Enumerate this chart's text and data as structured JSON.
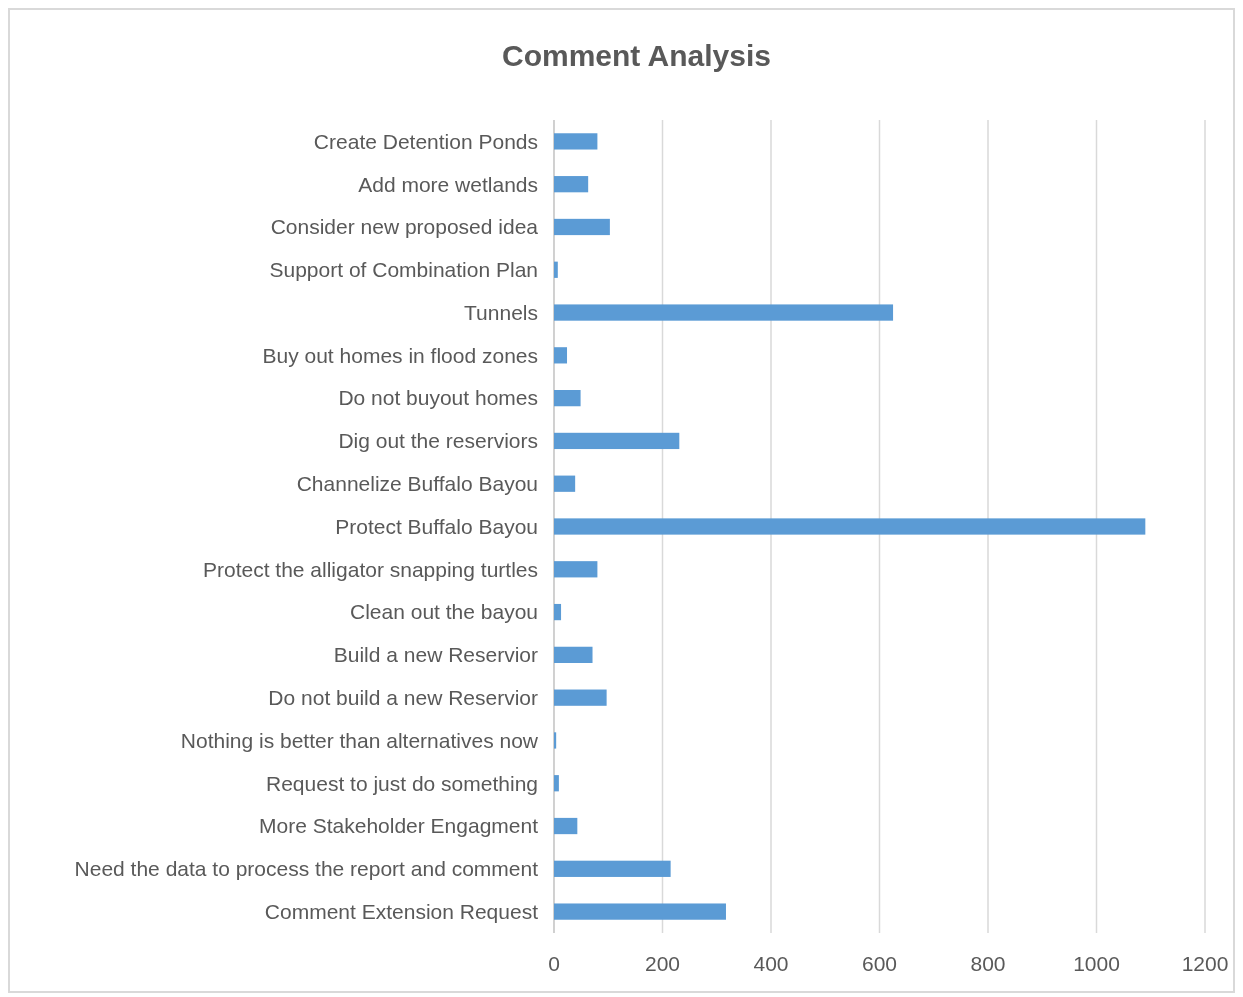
{
  "chart_data": {
    "type": "bar",
    "title": "Comment Analysis",
    "orientation": "horizontal",
    "categories": [
      "Create Detention Ponds",
      "Add more wetlands",
      "Consider new proposed idea",
      "Support of Combination Plan",
      "Tunnels",
      "Buy out homes in flood zones",
      "Do not buyout homes",
      "Dig out the reserviors",
      "Channelize Buffalo Bayou",
      "Protect Buffalo Bayou",
      "Protect the alligator snapping turtles",
      "Clean out the bayou",
      "Build a new Reservior",
      "Do not build a new Reservior",
      "Nothing is better than alternatives now",
      "Request to just do something",
      "More Stakeholder Engagment",
      "Need the data to process the report and comment",
      "Comment Extension Request"
    ],
    "values": [
      80,
      63,
      103,
      7,
      625,
      24,
      49,
      231,
      39,
      1090,
      80,
      13,
      71,
      97,
      4,
      9,
      43,
      215,
      317
    ],
    "color": "#5b9bd5",
    "xlim": [
      0,
      1200
    ],
    "xticks": [
      0,
      200,
      400,
      600,
      800,
      1000,
      1200
    ],
    "grid": "x"
  }
}
